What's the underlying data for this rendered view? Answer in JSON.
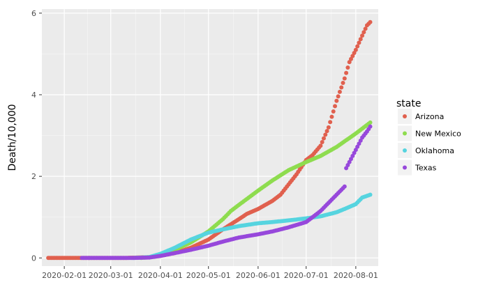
{
  "chart_data": {
    "type": "scatter",
    "title": "",
    "xlabel": "",
    "ylabel": "Death/10,000",
    "x_type": "date",
    "xlim": [
      "2020-01-18",
      "2020-08-15"
    ],
    "ylim": [
      -0.2,
      6.1
    ],
    "x_ticks": [
      "2020-02-01",
      "2020-03-01",
      "2020-04-01",
      "2020-05-01",
      "2020-06-01",
      "2020-07-01",
      "2020-08-01"
    ],
    "y_ticks": [
      0,
      2,
      4,
      6
    ],
    "y_tick_labels": [
      "0",
      "2",
      "4",
      "6"
    ],
    "grid": true,
    "legend": {
      "title": "state",
      "placement": "right"
    },
    "series": [
      {
        "name": "Arizona",
        "color": "#E0604E",
        "points": [
          [
            "2020-01-22",
            0
          ],
          [
            "2020-02-15",
            0
          ],
          [
            "2020-03-10",
            0
          ],
          [
            "2020-03-25",
            0.02
          ],
          [
            "2020-04-01",
            0.05
          ],
          [
            "2020-04-10",
            0.12
          ],
          [
            "2020-04-20",
            0.25
          ],
          [
            "2020-05-01",
            0.45
          ],
          [
            "2020-05-10",
            0.7
          ],
          [
            "2020-05-20",
            0.95
          ],
          [
            "2020-05-25",
            1.08
          ],
          [
            "2020-06-01",
            1.2
          ],
          [
            "2020-06-10",
            1.4
          ],
          [
            "2020-06-15",
            1.55
          ],
          [
            "2020-06-20",
            1.8
          ],
          [
            "2020-06-25",
            2.05
          ],
          [
            "2020-07-01",
            2.4
          ],
          [
            "2020-07-05",
            2.52
          ],
          [
            "2020-07-10",
            2.75
          ],
          [
            "2020-07-15",
            3.2
          ],
          [
            "2020-07-20",
            3.85
          ],
          [
            "2020-07-25",
            4.4
          ],
          [
            "2020-07-28",
            4.8
          ],
          [
            "2020-08-01",
            5.1
          ],
          [
            "2020-08-05",
            5.45
          ],
          [
            "2020-08-08",
            5.7
          ],
          [
            "2020-08-10",
            5.78
          ]
        ]
      },
      {
        "name": "New Mexico",
        "color": "#8EDC4F",
        "points": [
          [
            "2020-03-20",
            0
          ],
          [
            "2020-03-25",
            0.02
          ],
          [
            "2020-04-01",
            0.07
          ],
          [
            "2020-04-10",
            0.2
          ],
          [
            "2020-04-20",
            0.38
          ],
          [
            "2020-05-01",
            0.65
          ],
          [
            "2020-05-10",
            0.95
          ],
          [
            "2020-05-15",
            1.15
          ],
          [
            "2020-05-20",
            1.3
          ],
          [
            "2020-06-01",
            1.65
          ],
          [
            "2020-06-10",
            1.9
          ],
          [
            "2020-06-20",
            2.15
          ],
          [
            "2020-07-01",
            2.35
          ],
          [
            "2020-07-10",
            2.5
          ],
          [
            "2020-07-20",
            2.72
          ],
          [
            "2020-08-01",
            3.05
          ],
          [
            "2020-08-10",
            3.32
          ]
        ]
      },
      {
        "name": "Oklahoma",
        "color": "#56D4DF",
        "points": [
          [
            "2020-03-15",
            0
          ],
          [
            "2020-03-25",
            0.02
          ],
          [
            "2020-04-01",
            0.1
          ],
          [
            "2020-04-10",
            0.25
          ],
          [
            "2020-04-20",
            0.45
          ],
          [
            "2020-05-01",
            0.62
          ],
          [
            "2020-05-10",
            0.7
          ],
          [
            "2020-05-20",
            0.78
          ],
          [
            "2020-06-01",
            0.85
          ],
          [
            "2020-06-10",
            0.88
          ],
          [
            "2020-06-20",
            0.92
          ],
          [
            "2020-07-01",
            0.97
          ],
          [
            "2020-07-10",
            1.02
          ],
          [
            "2020-07-20",
            1.12
          ],
          [
            "2020-07-25",
            1.2
          ],
          [
            "2020-08-01",
            1.32
          ],
          [
            "2020-08-05",
            1.48
          ],
          [
            "2020-08-10",
            1.55
          ]
        ]
      },
      {
        "name": "Texas",
        "color": "#9748DB",
        "points": [
          [
            "2020-02-12",
            0
          ],
          [
            "2020-03-01",
            0
          ],
          [
            "2020-03-15",
            0
          ],
          [
            "2020-03-25",
            0.01
          ],
          [
            "2020-04-01",
            0.05
          ],
          [
            "2020-04-10",
            0.12
          ],
          [
            "2020-04-20",
            0.2
          ],
          [
            "2020-05-01",
            0.3
          ],
          [
            "2020-05-10",
            0.4
          ],
          [
            "2020-05-20",
            0.5
          ],
          [
            "2020-06-01",
            0.58
          ],
          [
            "2020-06-10",
            0.65
          ],
          [
            "2020-06-20",
            0.75
          ],
          [
            "2020-07-01",
            0.88
          ],
          [
            "2020-07-05",
            1.0
          ],
          [
            "2020-07-10",
            1.15
          ],
          [
            "2020-07-15",
            1.35
          ],
          [
            "2020-07-20",
            1.55
          ],
          [
            "2020-07-25",
            1.75
          ],
          [
            "2020-07-26",
            2.2
          ],
          [
            "2020-07-28",
            2.35
          ],
          [
            "2020-08-01",
            2.65
          ],
          [
            "2020-08-05",
            2.95
          ],
          [
            "2020-08-08",
            3.1
          ],
          [
            "2020-08-10",
            3.22
          ]
        ]
      }
    ]
  }
}
